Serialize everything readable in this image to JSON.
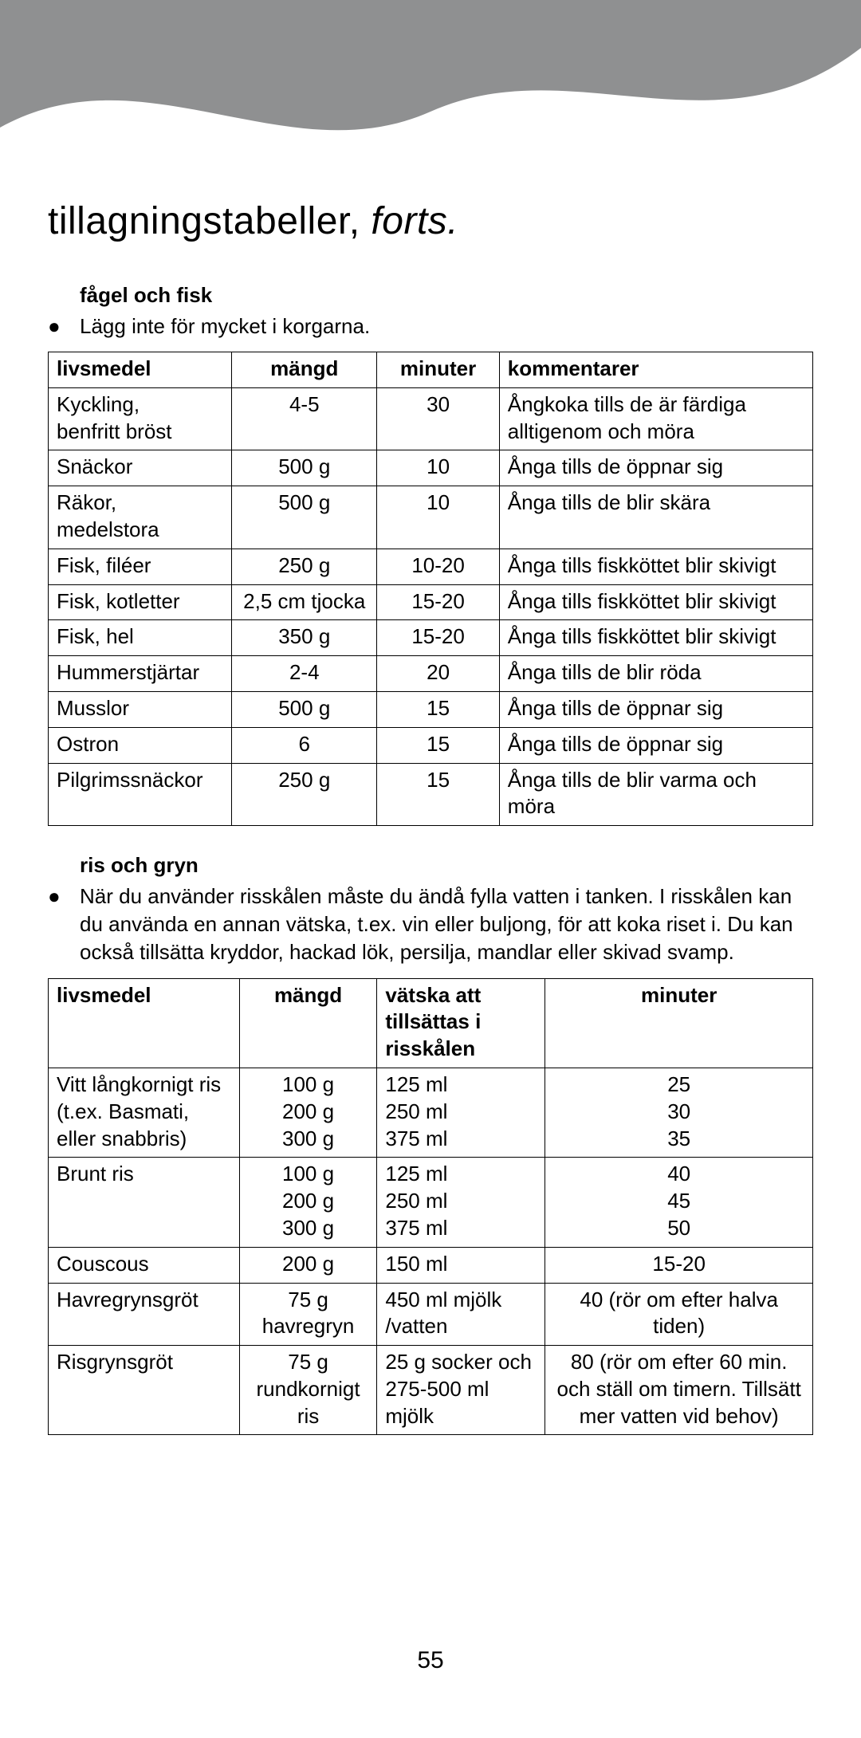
{
  "page": {
    "title_plain": "tillagningstabeller, ",
    "title_italic": "forts.",
    "page_number": "55"
  },
  "colors": {
    "wave": "#8f9091",
    "text": "#000000",
    "background": "#ffffff",
    "border": "#000000"
  },
  "section1": {
    "heading": "fågel och fisk",
    "bullet": "Lägg inte för mycket i korgarna.",
    "columns": [
      "livsmedel",
      "mängd",
      "minuter",
      "kommentarer"
    ],
    "col_widths_pct": [
      24,
      19,
      16,
      41
    ],
    "col_align": [
      "left",
      "center",
      "center",
      "left"
    ],
    "rows": [
      [
        "Kyckling,\nbenfritt bröst",
        "4-5",
        "30",
        "Ångkoka tills de är färdiga alltigenom och möra"
      ],
      [
        "Snäckor",
        "500 g",
        "10",
        "Ånga tills de öppnar sig"
      ],
      [
        "Räkor, medelstora",
        "500 g",
        "10",
        "Ånga tills de blir skära"
      ],
      [
        "Fisk, filéer",
        "250 g",
        "10-20",
        "Ånga tills fiskköttet blir skivigt"
      ],
      [
        "Fisk, kotletter",
        "2,5 cm tjocka",
        "15-20",
        "Ånga tills fiskköttet blir skivigt"
      ],
      [
        "Fisk, hel",
        "350 g",
        "15-20",
        "Ånga tills fiskköttet blir skivigt"
      ],
      [
        "Hummerstjärtar",
        "2-4",
        "20",
        "Ånga tills de blir röda"
      ],
      [
        "Musslor",
        "500 g",
        "15",
        "Ånga tills de öppnar sig"
      ],
      [
        "Ostron",
        "6",
        "15",
        "Ånga tills de öppnar sig"
      ],
      [
        "Pilgrimssnäckor",
        "250 g",
        "15",
        "Ånga tills de blir varma och möra"
      ]
    ]
  },
  "section2": {
    "heading": "ris och gryn",
    "bullet": "När du använder risskålen måste du ändå fylla vatten i tanken. I risskålen kan du använda en annan vätska, t.ex. vin eller buljong, för att koka riset i. Du kan också tillsätta kryddor, hackad lök, persilja, mandlar eller skivad svamp.",
    "columns": [
      "livsmedel",
      "mängd",
      "vätska att tillsättas i risskålen",
      "minuter"
    ],
    "col_widths_pct": [
      25,
      18,
      22,
      35
    ],
    "col_align": [
      "left",
      "center",
      "left",
      "center"
    ],
    "rows": [
      [
        "Vitt långkornigt ris\n(t.ex. Basmati,\neller snabbris)",
        "100 g\n200 g\n300 g",
        "125 ml\n250 ml\n375 ml",
        "25\n30\n35"
      ],
      [
        "Brunt ris",
        "100 g\n200 g\n300 g",
        "125 ml\n250 ml\n375 ml",
        "40\n45\n50"
      ],
      [
        "Couscous",
        "200 g",
        "150 ml",
        "15-20"
      ],
      [
        "Havregrynsgröt",
        "75 g havregryn",
        "450 ml mjölk /vatten",
        "40 (rör om efter halva tiden)"
      ],
      [
        "Risgrynsgröt",
        "75 g rundkornigt ris",
        "25 g socker och 275-500 ml mjölk",
        "80 (rör om efter 60 min. och ställ om timern. Tillsätt mer vatten vid behov)"
      ]
    ]
  }
}
